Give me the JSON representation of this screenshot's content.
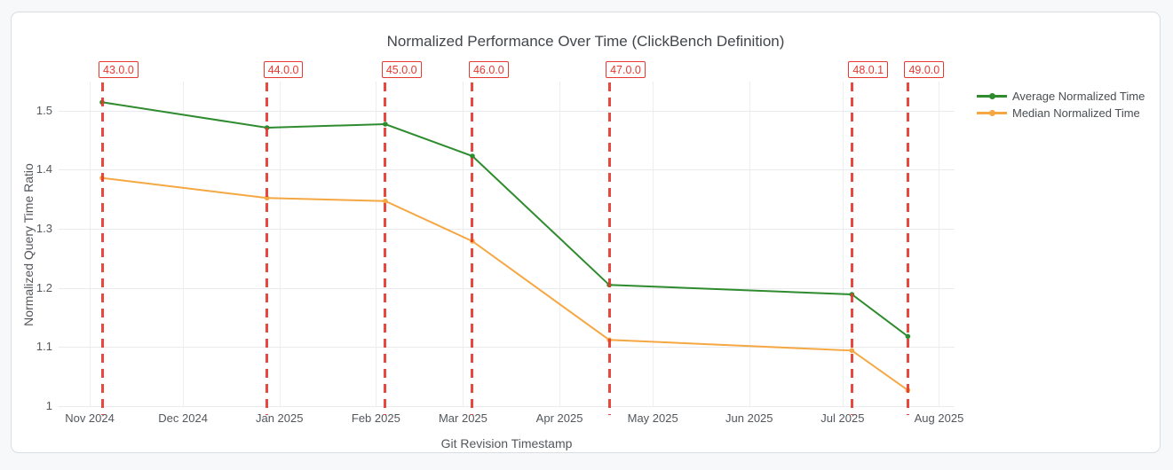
{
  "page": {
    "background": "#f6f8fa",
    "card_background": "#ffffff",
    "card_border": "#d9dde2"
  },
  "chart_data": {
    "type": "line",
    "title": "Normalized Performance Over Time (ClickBench Definition)",
    "xlabel": "Git Revision Timestamp",
    "ylabel": "Normalized Query Time Ratio",
    "x_range": [
      "2024-10-22",
      "2025-08-06"
    ],
    "y_range": [
      1.0,
      1.549
    ],
    "grid": true,
    "legend_position": "top-right-outside",
    "x_ticks": [
      {
        "label": "Nov 2024",
        "date": "2024-11-01"
      },
      {
        "label": "Dec 2024",
        "date": "2024-12-01"
      },
      {
        "label": "Jan 2025",
        "date": "2025-01-01"
      },
      {
        "label": "Feb 2025",
        "date": "2025-02-01"
      },
      {
        "label": "Mar 2025",
        "date": "2025-03-01"
      },
      {
        "label": "Apr 2025",
        "date": "2025-04-01"
      },
      {
        "label": "May 2025",
        "date": "2025-05-01"
      },
      {
        "label": "Jun 2025",
        "date": "2025-06-01"
      },
      {
        "label": "Jul 2025",
        "date": "2025-07-01"
      },
      {
        "label": "Aug 2025",
        "date": "2025-08-01"
      }
    ],
    "y_ticks": [
      {
        "label": "1",
        "value": 1.0
      },
      {
        "label": "1.1",
        "value": 1.1
      },
      {
        "label": "1.2",
        "value": 1.2
      },
      {
        "label": "1.3",
        "value": 1.3
      },
      {
        "label": "1.4",
        "value": 1.4
      },
      {
        "label": "1.5",
        "value": 1.5
      }
    ],
    "series": [
      {
        "name": "Average Normalized Time",
        "color": "#2e8b2e",
        "x": [
          "2024-11-05",
          "2024-12-28",
          "2025-02-04",
          "2025-03-04",
          "2025-04-17",
          "2025-07-04",
          "2025-07-22"
        ],
        "y": [
          1.514,
          1.471,
          1.477,
          1.423,
          1.205,
          1.189,
          1.118
        ]
      },
      {
        "name": "Median Normalized Time",
        "color": "#f5a742",
        "x": [
          "2024-11-05",
          "2024-12-28",
          "2025-02-04",
          "2025-03-04",
          "2025-04-17",
          "2025-07-04",
          "2025-07-22"
        ],
        "y": [
          1.386,
          1.352,
          1.347,
          1.279,
          1.112,
          1.094,
          1.027
        ]
      }
    ],
    "release_markers": {
      "color": "#e5392f",
      "style": "dashed",
      "items": [
        {
          "label": "43.0.0",
          "date": "2024-11-05"
        },
        {
          "label": "44.0.0",
          "date": "2024-12-28"
        },
        {
          "label": "45.0.0",
          "date": "2025-02-04"
        },
        {
          "label": "46.0.0",
          "date": "2025-03-04"
        },
        {
          "label": "47.0.0",
          "date": "2025-04-17"
        },
        {
          "label": "48.0.1",
          "date": "2025-07-04"
        },
        {
          "label": "49.0.0",
          "date": "2025-07-22"
        }
      ]
    }
  }
}
